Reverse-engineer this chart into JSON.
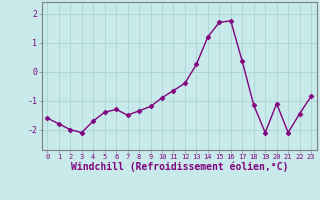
{
  "x": [
    0,
    1,
    2,
    3,
    4,
    5,
    6,
    7,
    8,
    9,
    10,
    11,
    12,
    13,
    14,
    15,
    16,
    17,
    18,
    19,
    20,
    21,
    22,
    23
  ],
  "y": [
    -1.6,
    -1.8,
    -2.0,
    -2.1,
    -1.7,
    -1.4,
    -1.3,
    -1.5,
    -1.35,
    -1.2,
    -0.9,
    -0.65,
    -0.4,
    0.25,
    1.2,
    1.7,
    1.75,
    0.35,
    -1.15,
    -2.1,
    -1.1,
    -2.1,
    -1.45,
    -0.85
  ],
  "line_color": "#800080",
  "marker": "D",
  "markersize": 2.5,
  "linewidth": 1.0,
  "xlabel": "Windchill (Refroidissement éolien,°C)",
  "xlabel_fontsize": 7,
  "ytick_labels": [
    "2",
    "1",
    "0",
    "-1",
    "-2"
  ],
  "yticks": [
    2,
    1,
    0,
    -1,
    -2
  ],
  "xticks": [
    0,
    1,
    2,
    3,
    4,
    5,
    6,
    7,
    8,
    9,
    10,
    11,
    12,
    13,
    14,
    15,
    16,
    17,
    18,
    19,
    20,
    21,
    22,
    23
  ],
  "ylim": [
    -2.7,
    2.4
  ],
  "xlim": [
    -0.5,
    23.5
  ],
  "bg_color": "#c8eaea",
  "grid_color": "#aad4d4",
  "tick_color": "#800080",
  "label_color": "#800080",
  "spine_color": "#808080"
}
